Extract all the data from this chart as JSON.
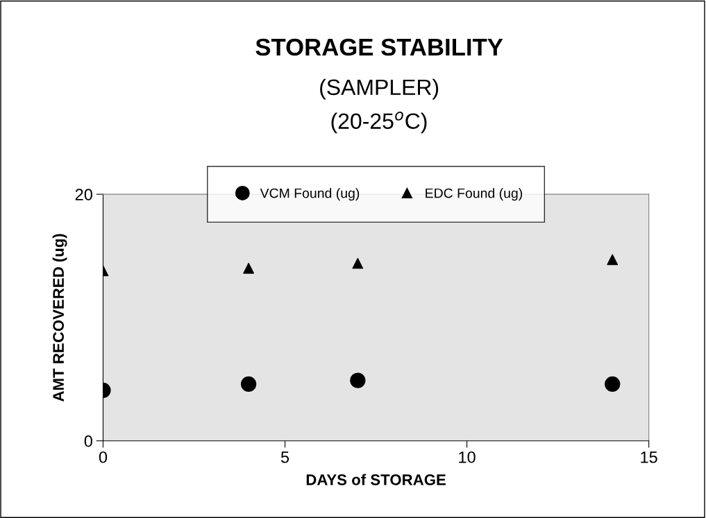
{
  "chart_data": {
    "type": "scatter",
    "title": "STORAGE STABILITY",
    "subtitle": "(SAMPLER)\n(20-25$^{o}$C)",
    "xlabel": "DAYS of STORAGE",
    "ylabel": "AMT RECOVERED (ug)",
    "x": [
      0,
      4,
      7,
      14
    ],
    "series": [
      {
        "name": "VCM Found (ug)",
        "color": "#000000",
        "marker": "circle",
        "values": [
          4.1,
          4.6,
          4.9,
          4.6
        ]
      },
      {
        "name": "EDC Found (ug)",
        "color": "#000000",
        "marker": "triangle",
        "values": [
          13.8,
          14.0,
          14.4,
          14.7
        ]
      }
    ],
    "xlim": [
      0,
      15
    ],
    "xticks": [
      0,
      5,
      10,
      15
    ],
    "ylim": [
      0,
      20
    ],
    "yticks": [
      0,
      20
    ],
    "grid": false,
    "legend": "top"
  }
}
